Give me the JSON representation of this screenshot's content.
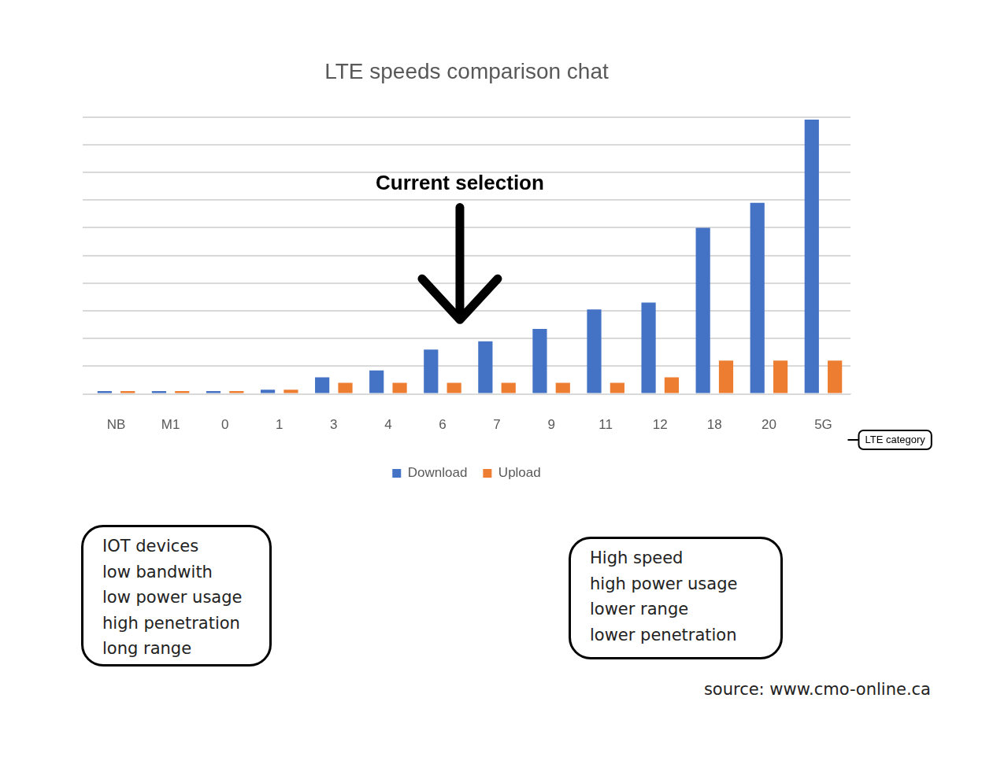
{
  "chart_data": {
    "type": "bar",
    "title": "LTE speeds comparison chat",
    "x_label": "LTE category",
    "categories": [
      "NB",
      "M1",
      "0",
      "1",
      "3",
      "4",
      "6",
      "7",
      "9",
      "11",
      "12",
      "18",
      "20",
      "5G"
    ],
    "series": [
      {
        "name": "Download",
        "color": "#4472c4",
        "values": [
          0.1,
          0.1,
          0.1,
          0.15,
          0.6,
          0.85,
          1.6,
          1.9,
          2.35,
          3.05,
          3.3,
          6.0,
          6.9,
          9.9
        ]
      },
      {
        "name": "Upload",
        "color": "#ed7d31",
        "values": [
          0.1,
          0.1,
          0.1,
          0.15,
          0.4,
          0.4,
          0.4,
          0.4,
          0.4,
          0.4,
          0.6,
          1.2,
          1.2,
          1.2
        ]
      }
    ],
    "ylim": [
      0,
      10
    ],
    "yticks": [
      0,
      1,
      2,
      3,
      4,
      5,
      6,
      7,
      8,
      9,
      10
    ],
    "grid": true,
    "tick_labels": "x",
    "legend": "bottom",
    "annotations": [
      {
        "text": "Current selection",
        "category": "6"
      },
      {
        "lines": [
          "IOT devices",
          "low bandwith",
          "low power usage",
          "high penetration",
          "long range"
        ]
      },
      {
        "lines": [
          "High speed",
          "high power usage",
          "lower range",
          "lower penetration"
        ]
      },
      {
        "text": "source: www.cmo-online.ca"
      }
    ]
  }
}
